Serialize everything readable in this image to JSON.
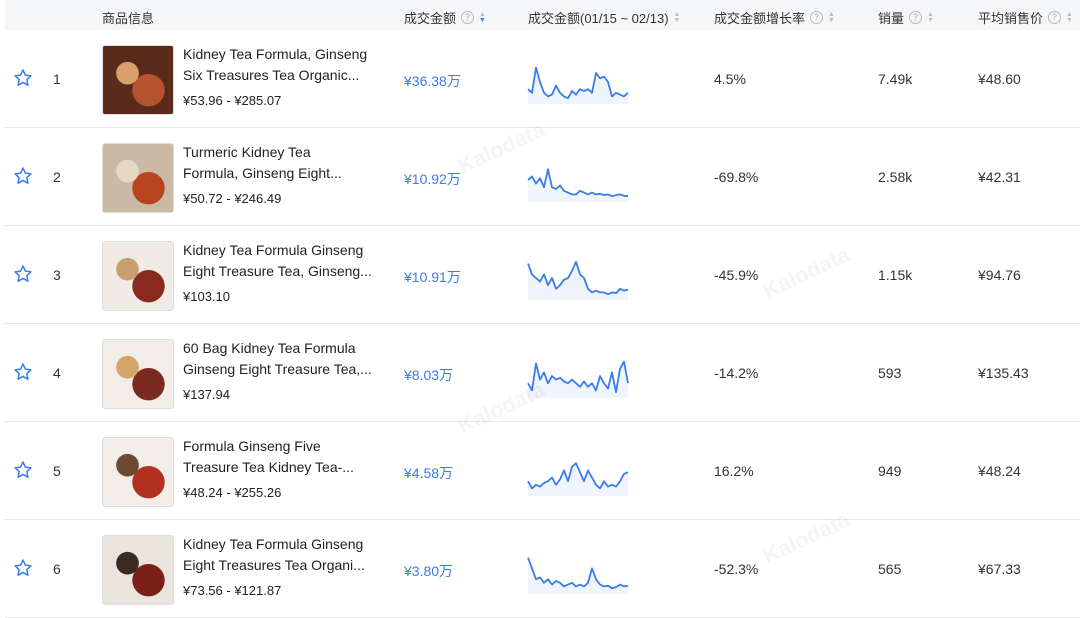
{
  "header": {
    "product_info": "商品信息",
    "gmv": "成交金额",
    "gmv_trend": "成交金额(01/15 ~ 02/13)",
    "gmv_growth": "成交金额增长率",
    "units": "销量",
    "avg_price": "平均销售价",
    "help": "?"
  },
  "watermark": "Kalodata",
  "accent": "#3b7de8",
  "rows": [
    {
      "rank": "1",
      "title1": "Kidney Tea Formula, Ginseng",
      "title2": "Six Treasures Tea Organic...",
      "price": "¥53.96 - ¥285.07",
      "gmv": "¥36.38万",
      "growth": "4.5%",
      "units": "7.49k",
      "avg": "¥48.60",
      "thumb": [
        "#5a2a1a",
        "#b5532e",
        "#d9a06a"
      ],
      "trend": [
        0.3,
        0.2,
        0.9,
        0.5,
        0.2,
        0.1,
        0.15,
        0.4,
        0.2,
        0.1,
        0.05,
        0.25,
        0.15,
        0.3,
        0.25,
        0.3,
        0.2,
        0.75,
        0.6,
        0.65,
        0.5,
        0.1,
        0.2,
        0.15,
        0.1,
        0.2
      ]
    },
    {
      "rank": "2",
      "title1": "Turmeric Kidney Tea",
      "title2": "Formula, Ginseng Eight...",
      "price": "¥50.72 - ¥246.49",
      "gmv": "¥10.92万",
      "growth": "-69.8%",
      "units": "2.58k",
      "avg": "¥42.31",
      "thumb": [
        "#c9b9a5",
        "#b8431e",
        "#e7d8c4"
      ],
      "trend": [
        0.5,
        0.6,
        0.4,
        0.55,
        0.3,
        0.8,
        0.3,
        0.25,
        0.35,
        0.2,
        0.15,
        0.1,
        0.1,
        0.2,
        0.15,
        0.1,
        0.15,
        0.1,
        0.12,
        0.08,
        0.1,
        0.05,
        0.08,
        0.1,
        0.06,
        0.05
      ]
    },
    {
      "rank": "3",
      "title1": "Kidney Tea Formula Ginseng",
      "title2": "Eight Treasure Tea, Ginseng...",
      "price": "¥103.10",
      "gmv": "¥10.91万",
      "growth": "-45.9%",
      "units": "1.15k",
      "avg": "¥94.76",
      "thumb": [
        "#f0ebe4",
        "#8a2a1e",
        "#c8a070"
      ],
      "trend": [
        0.9,
        0.6,
        0.5,
        0.4,
        0.6,
        0.3,
        0.5,
        0.2,
        0.3,
        0.45,
        0.5,
        0.7,
        0.95,
        0.6,
        0.5,
        0.2,
        0.1,
        0.15,
        0.1,
        0.1,
        0.05,
        0.1,
        0.08,
        0.2,
        0.15,
        0.18
      ]
    },
    {
      "rank": "4",
      "title1": "60 Bag Kidney Tea Formula",
      "title2": "Ginseng Eight Treasure Tea,...",
      "price": "¥137.94",
      "gmv": "¥8.03万",
      "growth": "-14.2%",
      "units": "593",
      "avg": "¥135.43",
      "thumb": [
        "#f2ede6",
        "#7a2a1e",
        "#d2a56a"
      ],
      "trend": [
        0.3,
        0.1,
        0.85,
        0.4,
        0.6,
        0.3,
        0.5,
        0.4,
        0.45,
        0.35,
        0.3,
        0.4,
        0.3,
        0.2,
        0.35,
        0.2,
        0.3,
        0.1,
        0.5,
        0.3,
        0.15,
        0.6,
        0.05,
        0.7,
        0.9,
        0.3
      ]
    },
    {
      "rank": "5",
      "title1": "Formula Ginseng Five",
      "title2": "Treasure Tea Kidney Tea-...",
      "price": "¥48.24 - ¥255.26",
      "gmv": "¥4.58万",
      "growth": "16.2%",
      "units": "949",
      "avg": "¥48.24",
      "thumb": [
        "#f2ede6",
        "#b23020",
        "#6b4a30"
      ],
      "trend": [
        0.3,
        0.1,
        0.2,
        0.15,
        0.25,
        0.3,
        0.4,
        0.2,
        0.35,
        0.6,
        0.3,
        0.7,
        0.8,
        0.55,
        0.3,
        0.6,
        0.4,
        0.2,
        0.1,
        0.3,
        0.15,
        0.2,
        0.15,
        0.3,
        0.5,
        0.55
      ]
    },
    {
      "rank": "6",
      "title1": "Kidney Tea Formula Ginseng",
      "title2": "Eight Treasures Tea Organi...",
      "price": "¥73.56 - ¥121.87",
      "gmv": "¥3.80万",
      "growth": "-52.3%",
      "units": "565",
      "avg": "¥67.33",
      "thumb": [
        "#e9e4dc",
        "#7a2018",
        "#3a2a20"
      ],
      "trend": [
        0.9,
        0.6,
        0.3,
        0.35,
        0.2,
        0.3,
        0.15,
        0.25,
        0.2,
        0.1,
        0.15,
        0.2,
        0.1,
        0.15,
        0.1,
        0.2,
        0.6,
        0.3,
        0.15,
        0.1,
        0.12,
        0.05,
        0.08,
        0.15,
        0.1,
        0.12
      ]
    }
  ]
}
